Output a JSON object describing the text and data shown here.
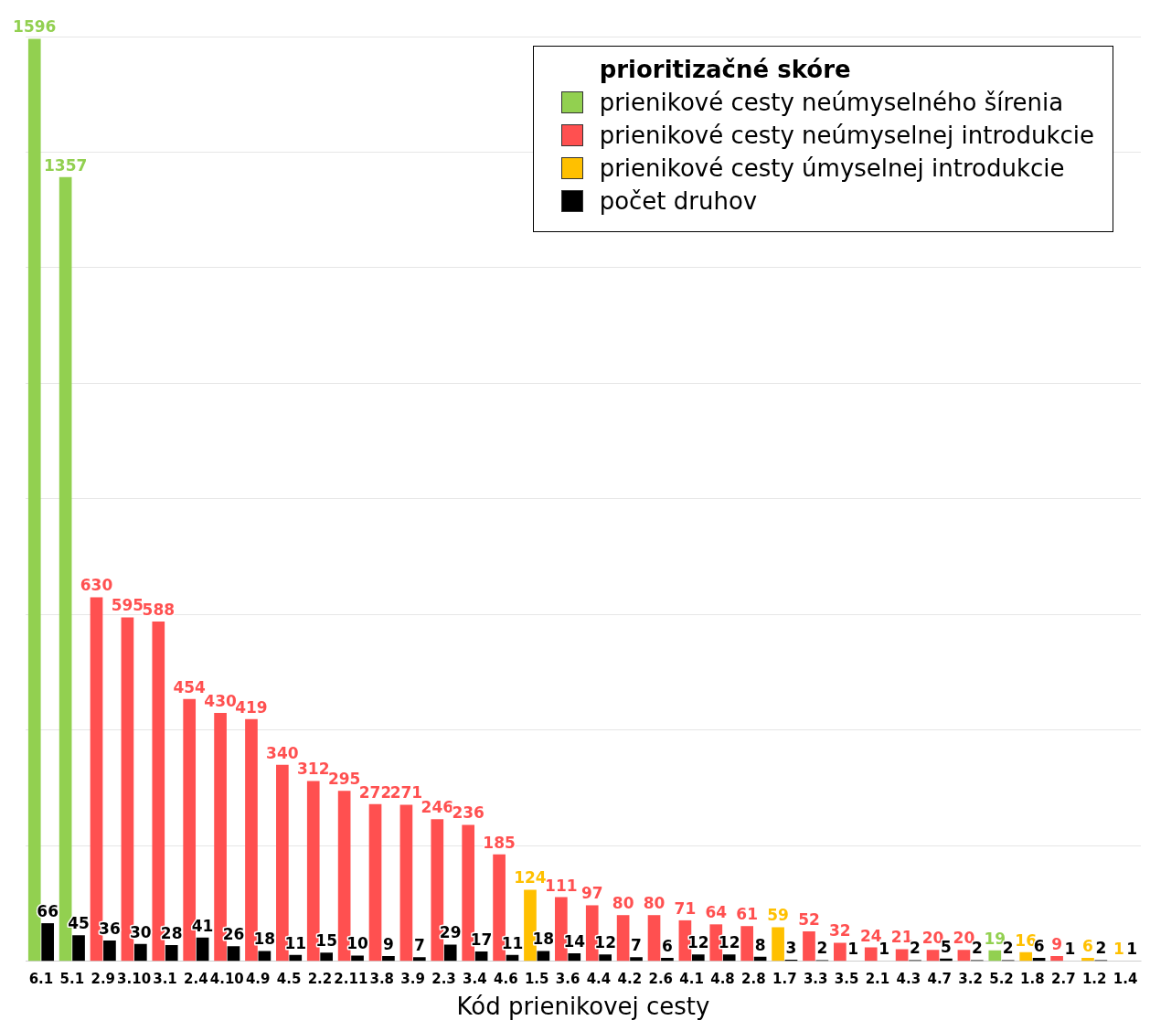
{
  "chart_data": {
    "type": "bar",
    "xlabel": "Kód prienikovej cesty",
    "legend_title": "prioritizačné skóre",
    "categories": [
      "6.1",
      "5.1",
      "2.9",
      "3.10",
      "3.1",
      "2.4",
      "4.10",
      "4.9",
      "4.5",
      "2.2",
      "2.11",
      "3.8",
      "3.9",
      "2.3",
      "3.4",
      "4.6",
      "1.5",
      "3.6",
      "4.4",
      "4.2",
      "2.6",
      "4.1",
      "4.8",
      "2.8",
      "1.7",
      "3.3",
      "3.5",
      "2.1",
      "4.3",
      "4.7",
      "3.2",
      "5.2",
      "1.8",
      "2.7",
      "1.2",
      "1.4"
    ],
    "series": [
      {
        "name": "prienikové cesty neúmyselného šírenia",
        "color": "#92d050",
        "values": [
          1596,
          1357,
          null,
          null,
          null,
          null,
          null,
          null,
          null,
          null,
          null,
          null,
          null,
          null,
          null,
          null,
          null,
          null,
          null,
          null,
          null,
          null,
          null,
          null,
          null,
          null,
          null,
          null,
          null,
          null,
          null,
          19,
          null,
          null,
          null,
          null
        ]
      },
      {
        "name": "prienikové cesty neúmyselnej introdukcie",
        "color": "#ff5050",
        "values": [
          null,
          null,
          630,
          595,
          588,
          454,
          430,
          419,
          340,
          312,
          295,
          272,
          271,
          246,
          236,
          185,
          null,
          111,
          97,
          80,
          80,
          71,
          64,
          61,
          null,
          52,
          32,
          24,
          21,
          20,
          20,
          null,
          null,
          9,
          null,
          null
        ]
      },
      {
        "name": "prienikové cesty úmyselnej introdukcie",
        "color": "#ffc000",
        "values": [
          null,
          null,
          null,
          null,
          null,
          null,
          null,
          null,
          null,
          null,
          null,
          null,
          null,
          null,
          null,
          null,
          124,
          null,
          null,
          null,
          null,
          null,
          null,
          null,
          59,
          null,
          null,
          null,
          null,
          null,
          null,
          null,
          16,
          null,
          6,
          1
        ]
      },
      {
        "name": "počet druhov",
        "color": "#000000",
        "values": [
          66,
          45,
          36,
          30,
          28,
          41,
          26,
          18,
          11,
          15,
          10,
          9,
          7,
          29,
          17,
          11,
          18,
          14,
          12,
          7,
          6,
          12,
          12,
          8,
          3,
          2,
          1,
          1,
          2,
          5,
          2,
          2,
          6,
          1,
          2,
          1
        ]
      }
    ],
    "data_labels": true,
    "grid": "y",
    "legend": "top right",
    "tick_labels": "x"
  }
}
